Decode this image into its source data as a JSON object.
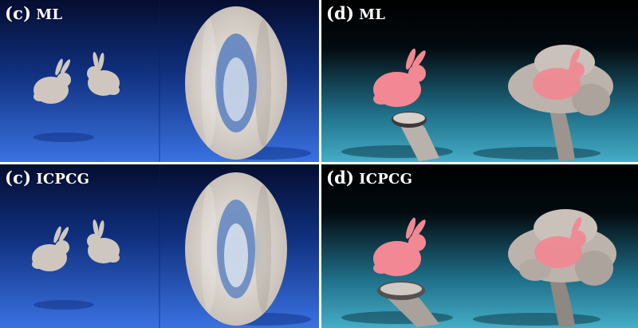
{
  "panels": [
    {
      "tag": "(c)",
      "method": "ML",
      "scene": "bunnies-smoke"
    },
    {
      "tag": "(d)",
      "method": "ML",
      "scene": "bunny-mushroom"
    },
    {
      "tag": "(c)",
      "method": "ICPCG",
      "scene": "bunnies-smoke"
    },
    {
      "tag": "(d)",
      "method": "ICPCG",
      "scene": "bunny-mushroom"
    }
  ],
  "colors": {
    "blue_bg_top": "#07113a",
    "blue_bg_bottom": "#2f66d8",
    "teal_bg_top": "#000000",
    "teal_bg_bottom": "#3ea3bf",
    "bunny_pink": "#f08a93",
    "smoke_white": "#e2dcd6",
    "divider": "#ffffff"
  }
}
